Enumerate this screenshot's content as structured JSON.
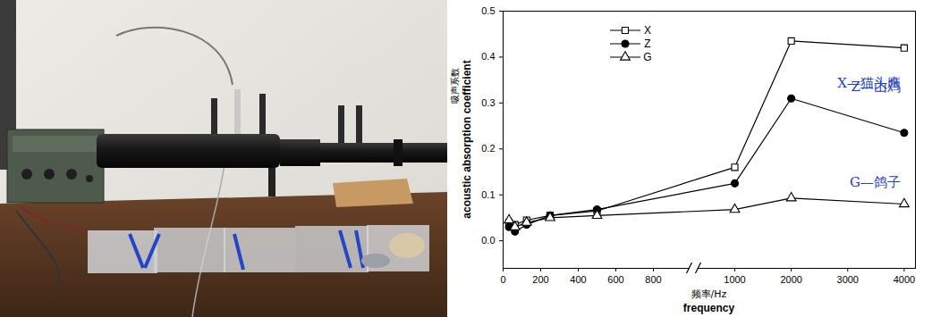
{
  "chart_data": {
    "type": "line",
    "y_label": "acoustic absorption coefficient",
    "y_label_cn": "吸声系数",
    "x_label": "frequency",
    "x_label_cn": "频率/Hz",
    "x": [
      31.5,
      63,
      125,
      250,
      500,
      1000,
      2000,
      4000
    ],
    "series": [
      {
        "name": "X",
        "color": "#000000",
        "marker": "square-open",
        "values": [
          0.04,
          0.035,
          0.045,
          0.055,
          0.065,
          0.16,
          0.435,
          0.42
        ]
      },
      {
        "name": "Z",
        "color": "#000000",
        "marker": "circle",
        "values": [
          0.03,
          0.02,
          0.035,
          0.055,
          0.068,
          0.125,
          0.31,
          0.235
        ]
      },
      {
        "name": "G",
        "color": "#000000",
        "marker": "triangle-open",
        "values": [
          0.045,
          0.03,
          0.04,
          0.05,
          0.055,
          0.068,
          0.093,
          0.08
        ]
      }
    ],
    "annotations": [
      "X—猫头鹰",
      "Z—山鸡",
      "G—鸽子"
    ],
    "xlim": [
      0,
      4200
    ],
    "xticks": [
      0,
      200,
      400,
      600,
      800,
      1000,
      2000,
      3000,
      4000
    ],
    "ylim": [
      -0.06,
      0.5
    ],
    "yticks": [
      {
        "value": 0,
        "label": "0.0"
      },
      0.1,
      0.2,
      0.3,
      0.4,
      0.5
    ],
    "legend": "upper left",
    "grid": false
  }
}
